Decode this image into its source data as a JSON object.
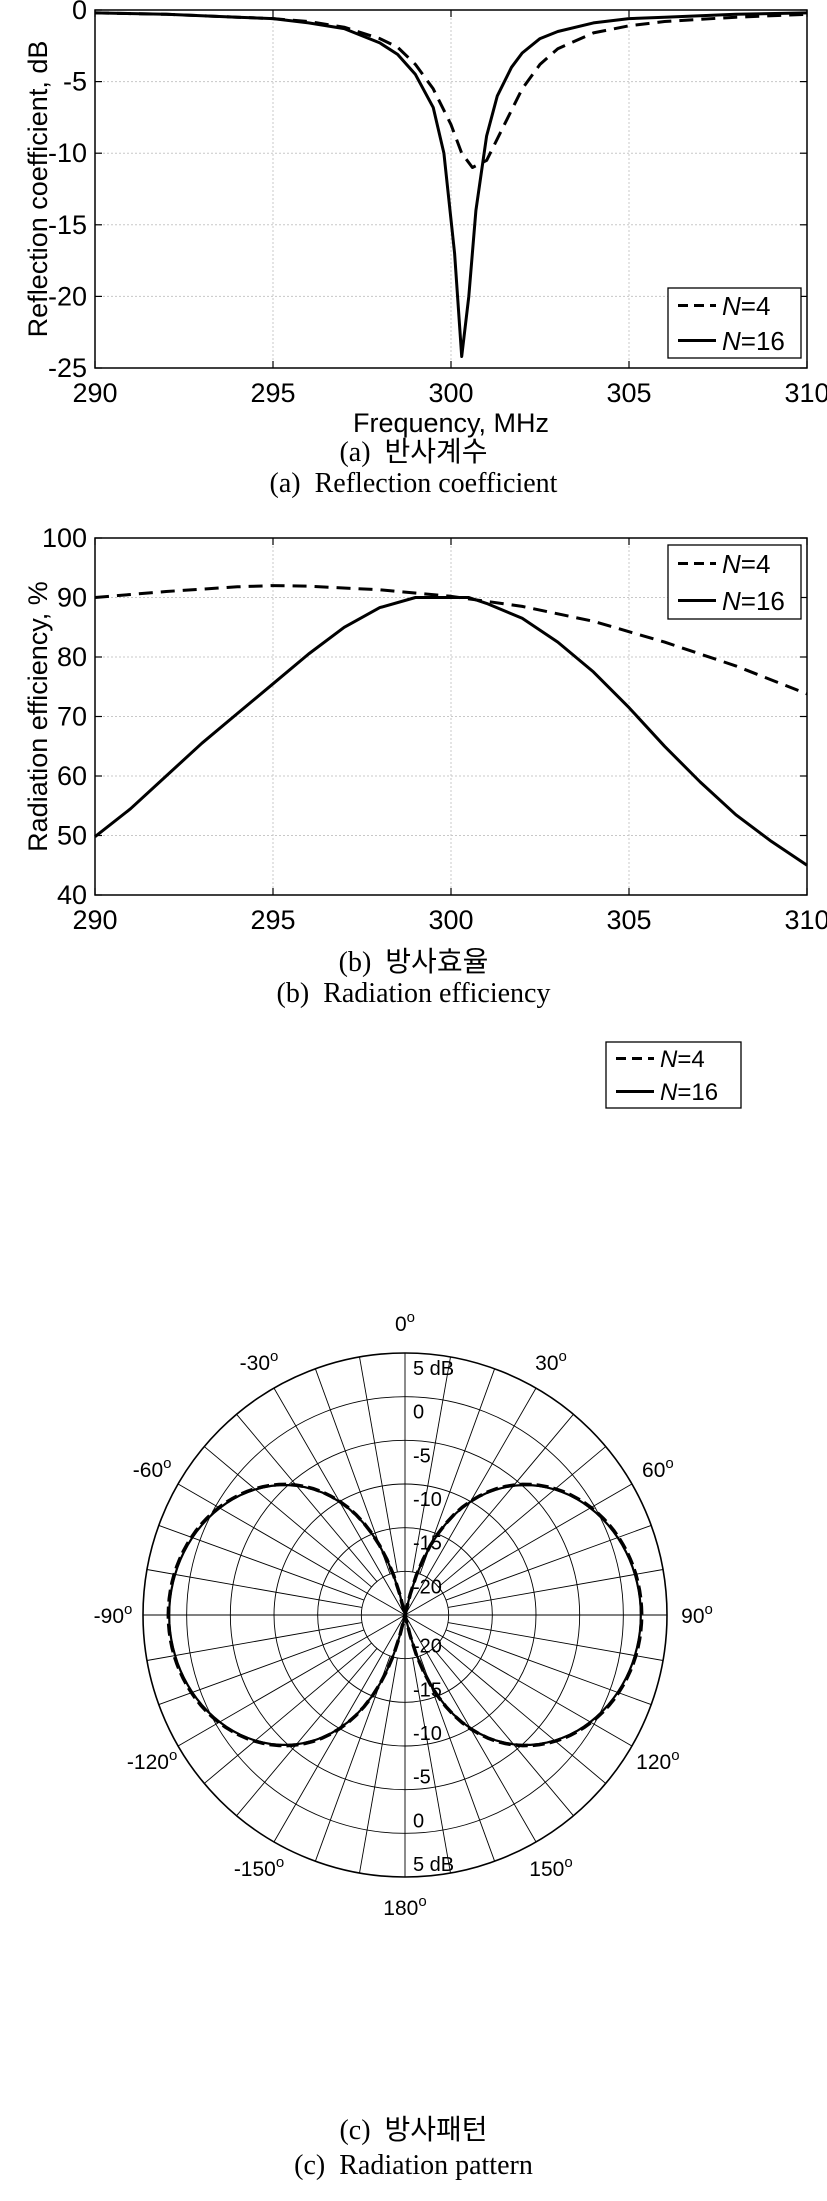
{
  "captions": {
    "a_label": "(a)",
    "a_ko": "반사계수",
    "a_en": "Reflection coefficient",
    "b_label": "(b)",
    "b_ko": "방사효율",
    "b_en": "Radiation efficiency",
    "c_label": "(c)",
    "c_ko": "방사패턴",
    "c_en": "Radiation pattern"
  },
  "chart_data": [
    {
      "id": "reflection",
      "type": "line",
      "xlabel": "Frequency, MHz",
      "ylabel": "Reflection coefficient, dB",
      "xlim": [
        290,
        310
      ],
      "ylim": [
        -25,
        0
      ],
      "xticks": [
        290,
        295,
        300,
        305,
        310
      ],
      "yticks": [
        0,
        -5,
        -10,
        -15,
        -20,
        -25
      ],
      "grid": true,
      "legend_position": "bottom-right",
      "series": [
        {
          "name": "N=4",
          "style": "dashed",
          "x": [
            290,
            292,
            294,
            295,
            296,
            297,
            298,
            298.5,
            299,
            299.5,
            300,
            300.3,
            300.6,
            301,
            301.5,
            302,
            302.5,
            303,
            304,
            305,
            306,
            308,
            310
          ],
          "y": [
            -0.2,
            -0.3,
            -0.5,
            -0.6,
            -0.8,
            -1.2,
            -2.0,
            -2.6,
            -3.8,
            -5.5,
            -8.0,
            -10.0,
            -11.0,
            -10.5,
            -8.0,
            -5.5,
            -3.8,
            -2.7,
            -1.6,
            -1.1,
            -0.8,
            -0.5,
            -0.3
          ]
        },
        {
          "name": "N=16",
          "style": "solid",
          "x": [
            290,
            292,
            294,
            295,
            296,
            297,
            298,
            298.5,
            299,
            299.5,
            299.8,
            300.1,
            300.3,
            300.5,
            300.7,
            301,
            301.3,
            301.7,
            302,
            302.5,
            303,
            304,
            305,
            306,
            308,
            310
          ],
          "y": [
            -0.2,
            -0.3,
            -0.5,
            -0.6,
            -0.9,
            -1.3,
            -2.3,
            -3.1,
            -4.5,
            -6.8,
            -10.0,
            -17.0,
            -24.2,
            -20.0,
            -14.0,
            -8.8,
            -6.0,
            -4.0,
            -3.0,
            -2.0,
            -1.5,
            -0.9,
            -0.6,
            -0.5,
            -0.3,
            -0.2
          ]
        }
      ]
    },
    {
      "id": "efficiency",
      "type": "line",
      "xlabel": "",
      "ylabel": "Radiation efficiency, %",
      "xlim": [
        290,
        310
      ],
      "ylim": [
        40,
        100
      ],
      "xticks": [
        290,
        295,
        300,
        305,
        310
      ],
      "yticks": [
        40,
        50,
        60,
        70,
        80,
        90,
        100
      ],
      "grid": true,
      "legend_position": "top-right",
      "series": [
        {
          "name": "N=4",
          "style": "dashed",
          "x": [
            290,
            292,
            294,
            295,
            296,
            298,
            300,
            302,
            304,
            306,
            308,
            310
          ],
          "y": [
            90.0,
            91.0,
            91.8,
            92.0,
            91.9,
            91.3,
            90.2,
            88.5,
            86.0,
            82.5,
            78.5,
            73.8
          ]
        },
        {
          "name": "N=16",
          "style": "solid",
          "x": [
            290,
            291,
            292,
            293,
            294,
            295,
            296,
            297,
            298,
            299,
            300,
            300.5,
            301,
            302,
            303,
            304,
            305,
            306,
            307,
            308,
            309,
            310
          ],
          "y": [
            49.8,
            54.5,
            60.0,
            65.5,
            70.5,
            75.5,
            80.5,
            85.0,
            88.3,
            90.0,
            90.0,
            90.0,
            89.0,
            86.5,
            82.5,
            77.5,
            71.5,
            65.0,
            59.0,
            53.5,
            49.0,
            45.0
          ]
        }
      ]
    },
    {
      "id": "pattern",
      "type": "polar",
      "rlim_db": [
        -25,
        5
      ],
      "radial_ticks": [
        "5 dB",
        "0",
        "-5",
        "-10",
        "-15",
        "-20"
      ],
      "radial_ticks_lower": [
        "-20",
        "-15",
        "-10",
        "-5",
        "0",
        "5 dB"
      ],
      "angle_labels": [
        {
          "deg": 0,
          "label": "0"
        },
        {
          "deg": 30,
          "label": "30"
        },
        {
          "deg": 60,
          "label": "60"
        },
        {
          "deg": 90,
          "label": "90"
        },
        {
          "deg": 120,
          "label": "120"
        },
        {
          "deg": 150,
          "label": "150"
        },
        {
          "deg": 180,
          "label": "180"
        },
        {
          "deg": -150,
          "label": "-150"
        },
        {
          "deg": -120,
          "label": "-120"
        },
        {
          "deg": -90,
          "label": "-90"
        },
        {
          "deg": -60,
          "label": "-60"
        },
        {
          "deg": -30,
          "label": "-30"
        }
      ],
      "legend_position": "top-right",
      "series": [
        {
          "name": "N=4",
          "style": "dashed",
          "pattern": "dipole sin-squared",
          "peak_db": 2.1
        },
        {
          "name": "N=16",
          "style": "solid",
          "pattern": "dipole sin-squared",
          "peak_db": 2.0
        }
      ]
    }
  ]
}
